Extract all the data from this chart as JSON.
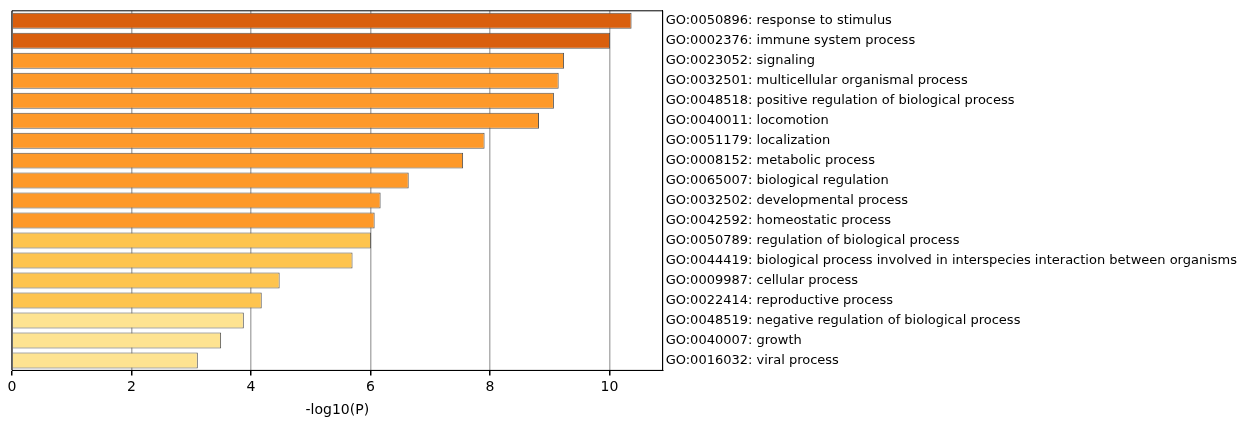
{
  "chart_data": {
    "type": "bar",
    "orientation": "horizontal",
    "xlabel": "-log10(P)",
    "categories": [
      "GO:0050896: response to stimulus",
      "GO:0002376: immune system process",
      "GO:0023052: signaling",
      "GO:0032501: multicellular organismal process",
      "GO:0048518: positive regulation of biological process",
      "GO:0040011: locomotion",
      "GO:0051179: localization",
      "GO:0008152: metabolic process",
      "GO:0065007: biological regulation",
      "GO:0032502: developmental process",
      "GO:0042592: homeostatic process",
      "GO:0050789: regulation of biological process",
      "GO:0044419: biological process involved in interspecies interaction between organisms",
      "GO:0009987: cellular process",
      "GO:0022414: reproductive process",
      "GO:0048519: negative regulation of biological process",
      "GO:0040007: growth",
      "GO:0016032: viral process"
    ],
    "values": [
      10.37,
      10.01,
      9.24,
      9.15,
      9.07,
      8.82,
      7.91,
      7.55,
      6.64,
      6.17,
      6.07,
      6.01,
      5.7,
      4.48,
      4.18,
      3.88,
      3.5,
      3.11
    ],
    "colors": [
      "#d95f0e",
      "#d95f0e",
      "#fe9929",
      "#fe9929",
      "#fe9929",
      "#fe9929",
      "#fe9929",
      "#fe9929",
      "#fe9929",
      "#fe9929",
      "#fe9929",
      "#fec44f",
      "#fec44f",
      "#fec44f",
      "#fec44f",
      "#fee391",
      "#fee391",
      "#fee391"
    ],
    "xlim": [
      0,
      10.89
    ],
    "xticks": [
      0,
      2,
      4,
      6,
      8,
      10
    ],
    "grid": "x",
    "legend": false
  }
}
